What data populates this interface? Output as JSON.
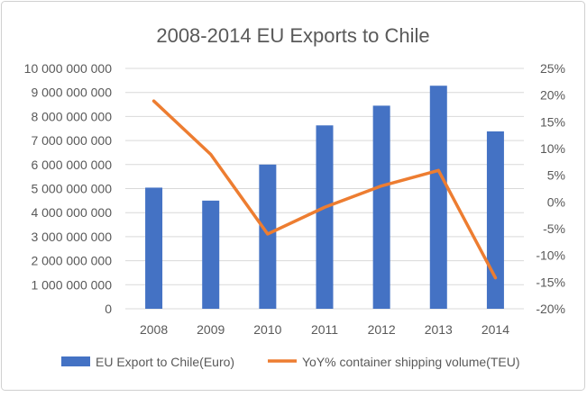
{
  "chart_data": {
    "type": "bar+line",
    "title": "2008-2014 EU Exports to Chile",
    "categories": [
      "2008",
      "2009",
      "2010",
      "2011",
      "2012",
      "2013",
      "2014"
    ],
    "series": [
      {
        "name": "EU Export to Chile(Euro)",
        "type": "bar",
        "axis": "left",
        "color": "#4472C4",
        "values": [
          5040000000,
          4500000000,
          6000000000,
          7630000000,
          8450000000,
          9280000000,
          7380000000
        ]
      },
      {
        "name": "YoY% container shipping volume(TEU)",
        "type": "line",
        "axis": "right",
        "color": "#ED7D31",
        "values": [
          18.9,
          8.9,
          -6.0,
          -1.0,
          3.0,
          5.9,
          -14.2
        ]
      }
    ],
    "left_axis": {
      "ylim": [
        0,
        10000000000
      ],
      "ticks": [
        "0",
        "1 000 000 000",
        "2 000 000 000",
        "3 000 000 000",
        "4 000 000 000",
        "5 000 000 000",
        "6 000 000 000",
        "7 000 000 000",
        "8 000 000 000",
        "9 000 000 000",
        "10 000 000 000"
      ]
    },
    "right_axis": {
      "ylim": [
        -20,
        25
      ],
      "ticks": [
        "-20%",
        "-15%",
        "-10%",
        "-5%",
        "0%",
        "5%",
        "10%",
        "15%",
        "20%",
        "25%"
      ]
    },
    "grid": true,
    "legend": "bottom"
  }
}
